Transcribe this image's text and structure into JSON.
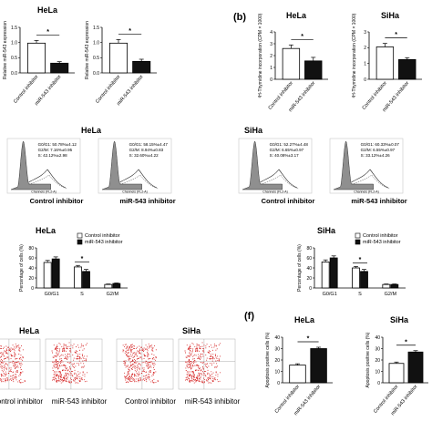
{
  "panel_labels": {
    "b": "(b)",
    "f": "(f)"
  },
  "colors": {
    "control": "#ffffff",
    "inhibitor": "#111111",
    "dots": "#d42020",
    "peak": "#8f8f8f",
    "axis": "#000000"
  },
  "chart_data": [
    {
      "id": "a-hela",
      "type": "bar",
      "title": "HeLa",
      "ylabel": "Relative miR-543 expression",
      "ylim": [
        0,
        1.5
      ],
      "yticks": [
        "0.0",
        "0.5",
        "1.0",
        "1.5"
      ],
      "categories": [
        "Control inhibitor",
        "miR-543 inhibitor"
      ],
      "values": [
        0.98,
        0.32
      ],
      "errors": [
        0.09,
        0.05
      ],
      "sig": "*"
    },
    {
      "id": "a-siha",
      "type": "bar",
      "title": "",
      "ylabel": "Relative miR-543 expression",
      "ylim": [
        0,
        1.5
      ],
      "yticks": [
        "0.0",
        "0.5",
        "1.0",
        "1.5"
      ],
      "categories": [
        "Control inhibitor",
        "miR-543 inhibitor"
      ],
      "values": [
        0.98,
        0.38
      ],
      "errors": [
        0.12,
        0.07
      ],
      "sig": "*"
    },
    {
      "id": "b-hela",
      "type": "bar",
      "title": "HeLa",
      "ylabel": "³H-Thymidine incorporation (CPM × 1000)",
      "ylim": [
        0,
        4
      ],
      "yticks": [
        "0",
        "1",
        "2",
        "3",
        "4"
      ],
      "categories": [
        "Control inhibitor",
        "miR-543 inhibitor"
      ],
      "values": [
        2.6,
        1.55
      ],
      "errors": [
        0.3,
        0.3
      ],
      "sig": "*"
    },
    {
      "id": "b-siha",
      "type": "bar",
      "title": "SiHa",
      "ylabel": "³H-Thymidine incorporation (CPM × 1000)",
      "ylim": [
        0,
        3
      ],
      "yticks": [
        "0",
        "1",
        "2",
        "3"
      ],
      "categories": [
        "Control inhibitor",
        "miR-543 inhibitor"
      ],
      "values": [
        2.05,
        1.25
      ],
      "errors": [
        0.22,
        0.12
      ],
      "sig": "*"
    },
    {
      "id": "c-hela",
      "type": "histogram",
      "title": "HeLa",
      "xlabel": "Control inhibitor",
      "axis_text": "Channels (FL2-A)",
      "stats": [
        "G0/G1: 50.78%±4.12",
        "G2/M: 7.16%±0.95",
        "S: 42.12%±2.98"
      ]
    },
    {
      "id": "c-hela-2",
      "type": "histogram",
      "title": "",
      "xlabel": "miR-543 inhibitor",
      "axis_text": "Channels (FL2-A)",
      "stats": [
        "G0/G1: 58.15%±4.47",
        "G2/M: 8.94%±0.83",
        "S: 32.60%±4.22"
      ]
    },
    {
      "id": "c-siha",
      "type": "histogram",
      "title": "SiHa",
      "xlabel": "Control inhibitor",
      "axis_text": "Channels (FL2-A)",
      "stats": [
        "G0/G1: 52.27%±4.48",
        "G2/M: 6.65%±0.97",
        "S: 40.08%±3.17"
      ]
    },
    {
      "id": "c-siha-2",
      "type": "histogram",
      "title": "",
      "xlabel": "miR-543 inhibitor",
      "axis_text": "Channels (FL2-A)",
      "stats": [
        "G0/G1: 60.33%±0.07",
        "G2/M: 6.55%±0.97",
        "S: 33.12%±4.26"
      ]
    },
    {
      "id": "d-hela",
      "type": "bar",
      "title": "HeLa",
      "ylabel": "Percentage of cells (%)",
      "ylim": [
        0,
        80
      ],
      "yticks": [
        "0",
        "20",
        "40",
        "60",
        "80"
      ],
      "categories": [
        "G0/G1",
        "S",
        "G2/M"
      ],
      "series": [
        {
          "name": "Control inhibitor",
          "values": [
            51,
            42,
            7
          ],
          "errors": [
            4,
            3,
            1
          ]
        },
        {
          "name": "miR-543 inhibitor",
          "values": [
            58,
            33,
            9
          ],
          "errors": [
            4,
            4,
            1
          ]
        }
      ],
      "sig": "*"
    },
    {
      "id": "d-siha",
      "type": "bar",
      "title": "SiHa",
      "ylabel": "Percentage of cells (%)",
      "ylim": [
        0,
        80
      ],
      "yticks": [
        "0",
        "20",
        "40",
        "60",
        "80"
      ],
      "categories": [
        "G0/G1",
        "S",
        "G2/M"
      ],
      "series": [
        {
          "name": "Control inhibitor",
          "values": [
            52,
            40,
            7
          ],
          "errors": [
            4,
            3,
            1
          ]
        },
        {
          "name": "miR-543 inhibitor",
          "values": [
            60,
            33,
            7
          ],
          "errors": [
            4,
            4,
            1
          ]
        }
      ],
      "sig": "*"
    },
    {
      "id": "e-hela",
      "type": "scatter",
      "title": "HeLa",
      "xlabels": [
        "Control inhibitor",
        "miR-543 inhibitor"
      ]
    },
    {
      "id": "e-siha",
      "type": "scatter",
      "title": "SiHa",
      "xlabels": [
        "Control inhibitor",
        "miR-543 inhibitor"
      ]
    },
    {
      "id": "f-hela",
      "type": "bar",
      "title": "HeLa",
      "ylabel": "Apoptosis positive cells (%)",
      "ylim": [
        0,
        40
      ],
      "yticks": [
        "0",
        "10",
        "20",
        "30",
        "40"
      ],
      "categories": [
        "Control inhibitor",
        "miR-543 inhibitor"
      ],
      "values": [
        15.5,
        30
      ],
      "errors": [
        1.2,
        1.2
      ],
      "sig": "*"
    },
    {
      "id": "f-siha",
      "type": "bar",
      "title": "SiHa",
      "ylabel": "Apoptosis positive cells (%)",
      "ylim": [
        0,
        40
      ],
      "yticks": [
        "0",
        "10",
        "20",
        "30",
        "40"
      ],
      "categories": [
        "Control inhibitor",
        "miR-543 inhibitor"
      ],
      "values": [
        17,
        27
      ],
      "errors": [
        1.2,
        1.2
      ],
      "sig": "*"
    }
  ]
}
